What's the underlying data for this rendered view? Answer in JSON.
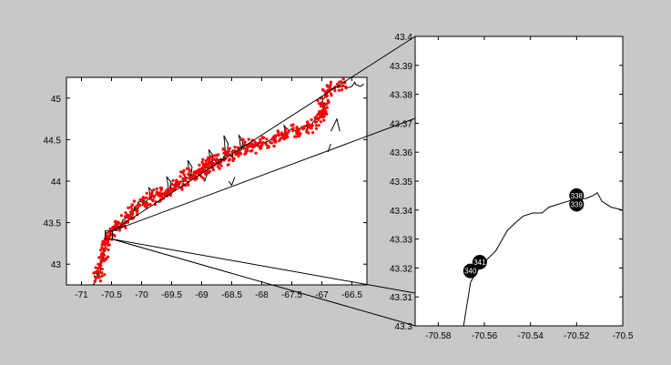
{
  "chart_data": [
    {
      "type": "map",
      "panel": "overview",
      "x_ticks": [
        "-71",
        "-70.5",
        "-70",
        "-69.5",
        "-69",
        "-68.5",
        "-68",
        "-67.5",
        "-67",
        "-66.5"
      ],
      "y_ticks": [
        "43",
        "43.5",
        "44",
        "44.5",
        "45"
      ],
      "xlim": [
        -71.25,
        -66.25
      ],
      "ylim": [
        42.75,
        45.25
      ],
      "colors": {
        "coastline": "#000000",
        "track": "#ff0000",
        "frame": "#000000"
      },
      "coastline": [
        [
          -70.78,
          42.75
        ],
        [
          -70.72,
          42.9
        ],
        [
          -70.66,
          43.05
        ],
        [
          -70.6,
          43.2
        ],
        [
          -70.55,
          43.32
        ],
        [
          -70.45,
          43.42
        ],
        [
          -70.3,
          43.5
        ],
        [
          -70.15,
          43.62
        ],
        [
          -70.0,
          43.72
        ],
        [
          -69.85,
          43.8
        ],
        [
          -69.7,
          43.85
        ],
        [
          -69.55,
          43.9
        ],
        [
          -69.4,
          43.95
        ],
        [
          -69.3,
          44.0
        ],
        [
          -69.2,
          44.05
        ],
        [
          -69.05,
          44.1
        ],
        [
          -68.95,
          44.15
        ],
        [
          -68.85,
          44.2
        ],
        [
          -68.75,
          44.25
        ],
        [
          -68.6,
          44.3
        ],
        [
          -68.45,
          44.35
        ],
        [
          -68.3,
          44.4
        ],
        [
          -68.15,
          44.42
        ],
        [
          -68.0,
          44.45
        ],
        [
          -67.8,
          44.5
        ],
        [
          -67.6,
          44.55
        ],
        [
          -67.4,
          44.62
        ],
        [
          -67.2,
          44.68
        ],
        [
          -67.05,
          44.75
        ],
        [
          -66.98,
          44.85
        ],
        [
          -66.95,
          45.0
        ],
        [
          -66.85,
          45.1
        ],
        [
          -66.6,
          45.15
        ],
        [
          -66.3,
          45.17
        ]
      ],
      "islands": [
        [
          [
            -69.0,
            44.05
          ],
          [
            -68.95,
            44.0
          ],
          [
            -68.9,
            44.1
          ]
        ],
        [
          [
            -68.55,
            44.0
          ],
          [
            -68.5,
            43.95
          ],
          [
            -68.45,
            44.05
          ]
        ],
        [
          [
            -66.85,
            44.6
          ],
          [
            -66.75,
            44.75
          ],
          [
            -66.7,
            44.6
          ]
        ],
        [
          [
            -66.9,
            44.35
          ],
          [
            -66.85,
            44.45
          ]
        ]
      ],
      "inset_box": {
        "lon": [
          -70.59,
          -70.5
        ],
        "lat": [
          43.3,
          43.4
        ]
      },
      "inset_callout_lines": [
        [
          -70.5,
          43.4
        ],
        [
          -70.5,
          43.3
        ]
      ]
    },
    {
      "type": "map",
      "panel": "inset",
      "x_ticks": [
        "-70.58",
        "-70.56",
        "-70.54",
        "-70.52",
        "-70.5"
      ],
      "y_ticks": [
        "43.3",
        "43.31",
        "43.32",
        "43.33",
        "43.34",
        "43.35",
        "43.36",
        "43.37",
        "43.38",
        "43.39",
        "43.4"
      ],
      "xlim": [
        -70.59,
        -70.5
      ],
      "ylim": [
        43.3,
        43.4
      ],
      "colors": {
        "coastline": "#000000",
        "station": "#000000",
        "station_label": "#ffffff"
      },
      "coastline": [
        [
          -70.569,
          43.3
        ],
        [
          -70.568,
          43.305
        ],
        [
          -70.567,
          43.31
        ],
        [
          -70.566,
          43.315
        ],
        [
          -70.564,
          43.318
        ],
        [
          -70.56,
          43.322
        ],
        [
          -70.555,
          43.326
        ],
        [
          -70.55,
          43.333
        ],
        [
          -70.546,
          43.336
        ],
        [
          -70.543,
          43.338
        ],
        [
          -70.539,
          43.339
        ],
        [
          -70.535,
          43.339
        ],
        [
          -70.532,
          43.341
        ],
        [
          -70.528,
          43.342
        ],
        [
          -70.524,
          43.343
        ],
        [
          -70.52,
          43.344
        ],
        [
          -70.516,
          43.344
        ],
        [
          -70.513,
          43.345
        ],
        [
          -70.511,
          43.346
        ],
        [
          -70.509,
          43.343
        ],
        [
          -70.505,
          43.341
        ],
        [
          -70.5,
          43.34
        ]
      ],
      "stations": [
        {
          "label": "340",
          "lon": -70.566,
          "lat": 43.319
        },
        {
          "label": "341",
          "lon": -70.562,
          "lat": 43.322
        },
        {
          "label": "338",
          "lon": -70.52,
          "lat": 43.345
        },
        {
          "label": "339",
          "lon": -70.52,
          "lat": 43.342
        }
      ]
    }
  ]
}
